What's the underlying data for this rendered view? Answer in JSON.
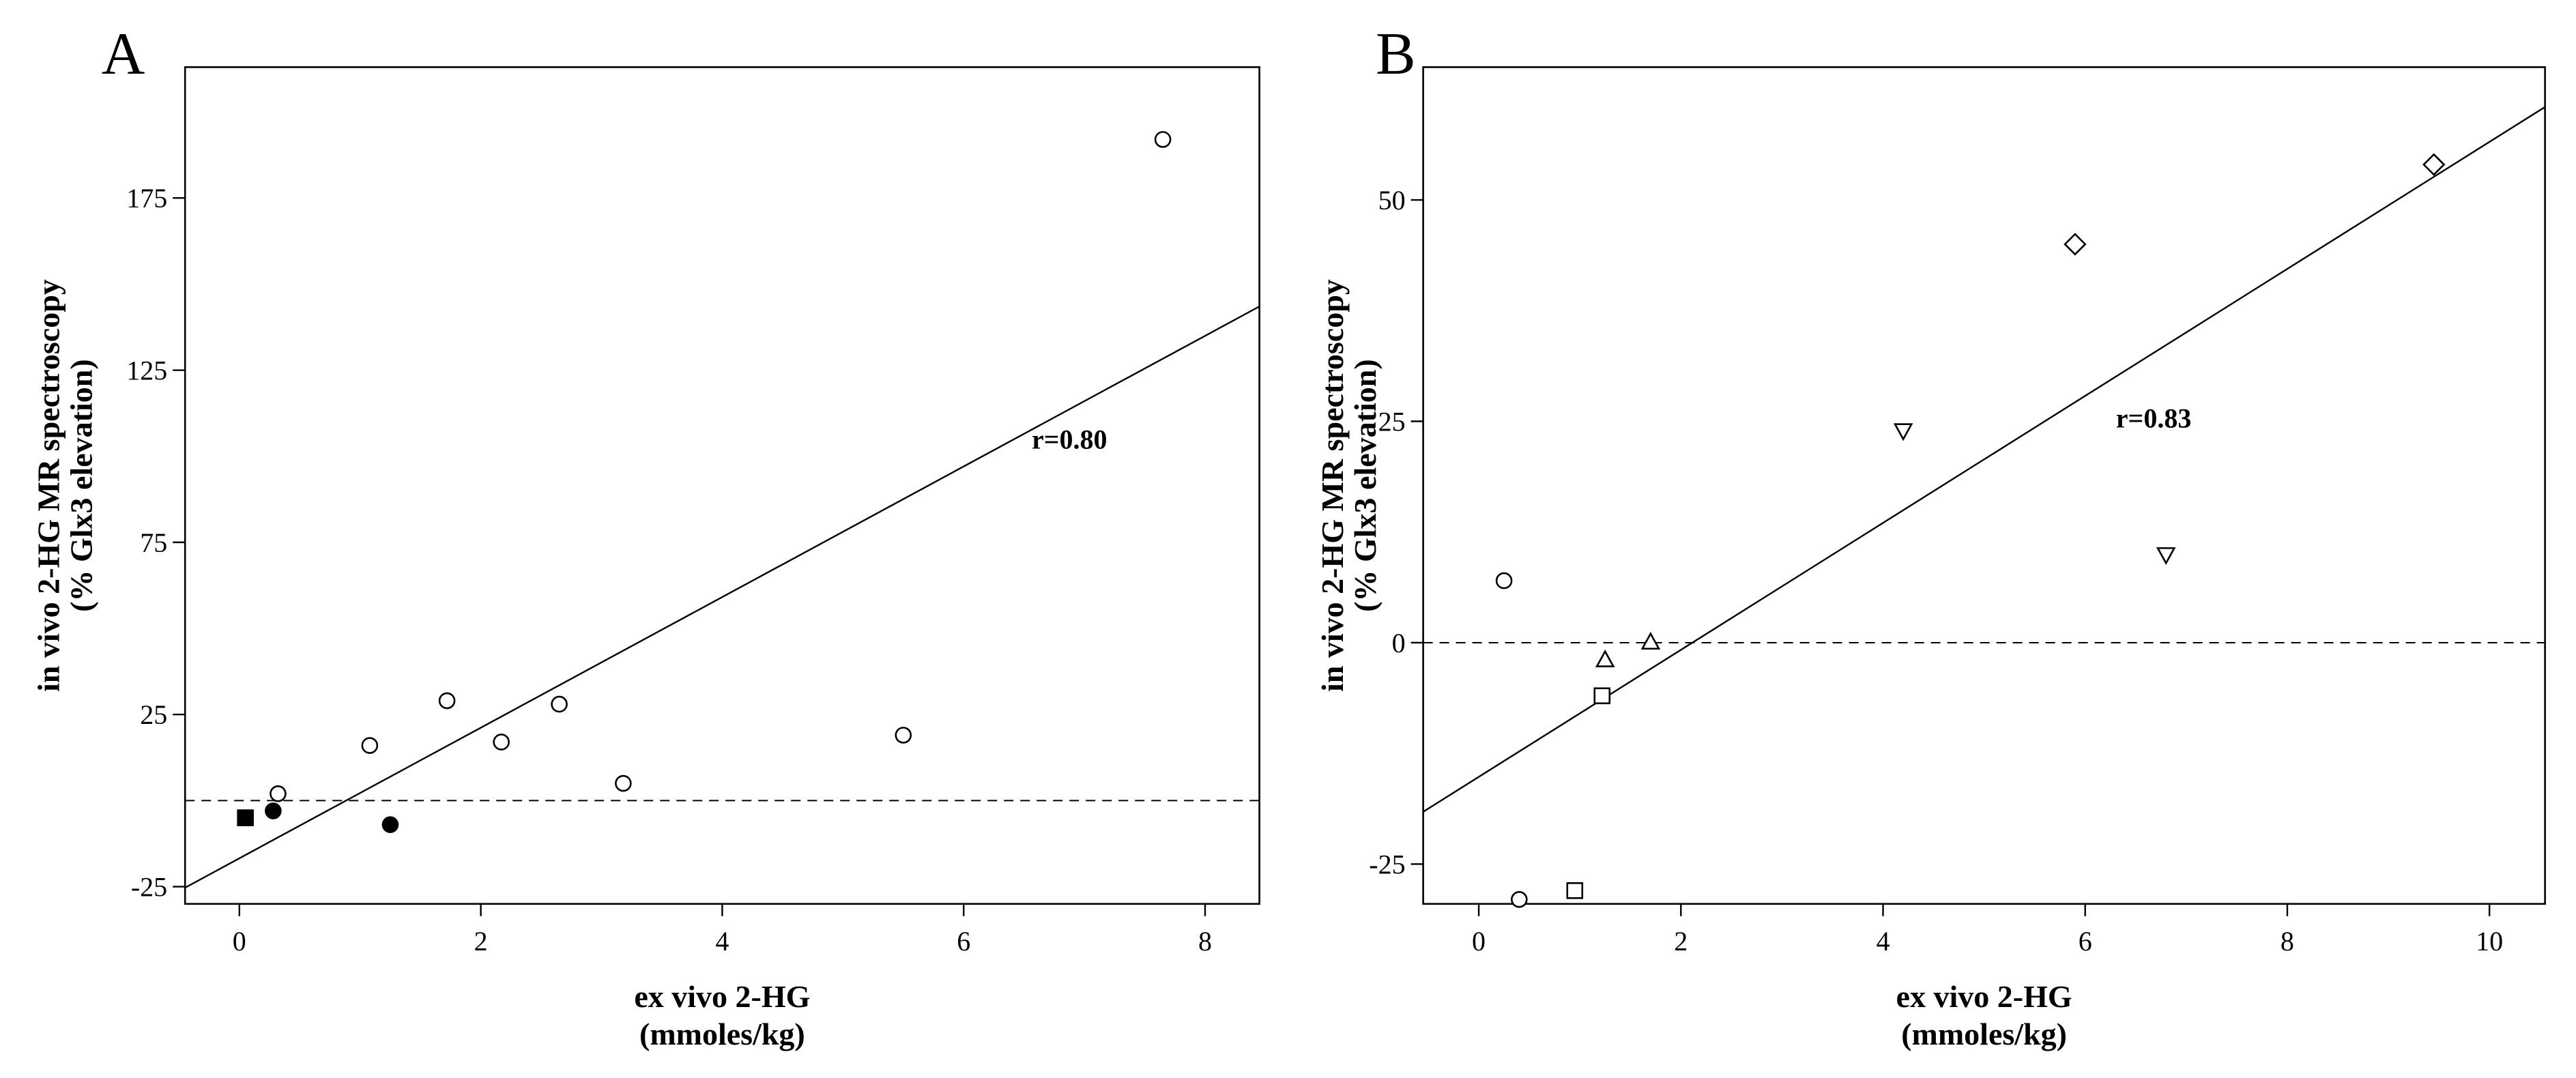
{
  "chart_data": [
    {
      "type": "scatter",
      "panel": "A",
      "xlabel": [
        "ex vivo 2-HG",
        "(mmoles/kg)"
      ],
      "ylabel": [
        "in vivo 2-HG MR spectroscopy",
        "(% Glx3 elevation)"
      ],
      "xlim": [
        -0.45,
        8.45
      ],
      "ylim": [
        -30,
        213
      ],
      "xticks": [
        0,
        2,
        4,
        6,
        8
      ],
      "yticks": [
        -25,
        25,
        75,
        125,
        175
      ],
      "reference_line_y": 0,
      "annotation": "r=0.80",
      "fit": {
        "x": [
          -0.45,
          8.45
        ],
        "y": [
          -25.3,
          143.5
        ]
      },
      "points": [
        {
          "x": 7.65,
          "y": 192,
          "marker": "circle-open"
        },
        {
          "x": 0.32,
          "y": 2,
          "marker": "circle-open"
        },
        {
          "x": 1.08,
          "y": 16,
          "marker": "circle-open"
        },
        {
          "x": 1.72,
          "y": 29,
          "marker": "circle-open"
        },
        {
          "x": 2.17,
          "y": 17,
          "marker": "circle-open"
        },
        {
          "x": 2.65,
          "y": 28,
          "marker": "circle-open"
        },
        {
          "x": 3.18,
          "y": 5,
          "marker": "circle-open"
        },
        {
          "x": 5.5,
          "y": 19,
          "marker": "circle-open"
        },
        {
          "x": 0.28,
          "y": -3,
          "marker": "circle-filled"
        },
        {
          "x": 1.25,
          "y": -7,
          "marker": "circle-filled"
        },
        {
          "x": 0.05,
          "y": -5,
          "marker": "square-filled"
        }
      ]
    },
    {
      "type": "scatter",
      "panel": "B",
      "xlabel": [
        "ex vivo 2-HG",
        "(mmoles/kg)"
      ],
      "ylabel": [
        "in vivo 2-HG MR spectroscopy",
        "(% Glx3 elevation)"
      ],
      "xlim": [
        -0.55,
        10.55
      ],
      "ylim": [
        -29.5,
        65
      ],
      "xticks": [
        0,
        2,
        4,
        6,
        8,
        10
      ],
      "yticks": [
        -25,
        0,
        25,
        50
      ],
      "reference_line_y": 0,
      "annotation": "r=0.83",
      "fit": {
        "x": [
          -0.55,
          10.55
        ],
        "y": [
          -19.1,
          60.5
        ]
      },
      "points": [
        {
          "x": 0.25,
          "y": 7,
          "marker": "circle-open"
        },
        {
          "x": 0.4,
          "y": -29,
          "marker": "circle-open"
        },
        {
          "x": 1.22,
          "y": -6,
          "marker": "square-open"
        },
        {
          "x": 0.95,
          "y": -28,
          "marker": "square-open"
        },
        {
          "x": 1.25,
          "y": -2,
          "marker": "triangle-up-open"
        },
        {
          "x": 1.7,
          "y": 0,
          "marker": "triangle-up-open"
        },
        {
          "x": 4.2,
          "y": 24,
          "marker": "triangle-down-open"
        },
        {
          "x": 6.8,
          "y": 10,
          "marker": "triangle-down-open"
        },
        {
          "x": 5.9,
          "y": 45,
          "marker": "diamond-open"
        },
        {
          "x": 9.45,
          "y": 54,
          "marker": "diamond-open"
        }
      ]
    }
  ]
}
